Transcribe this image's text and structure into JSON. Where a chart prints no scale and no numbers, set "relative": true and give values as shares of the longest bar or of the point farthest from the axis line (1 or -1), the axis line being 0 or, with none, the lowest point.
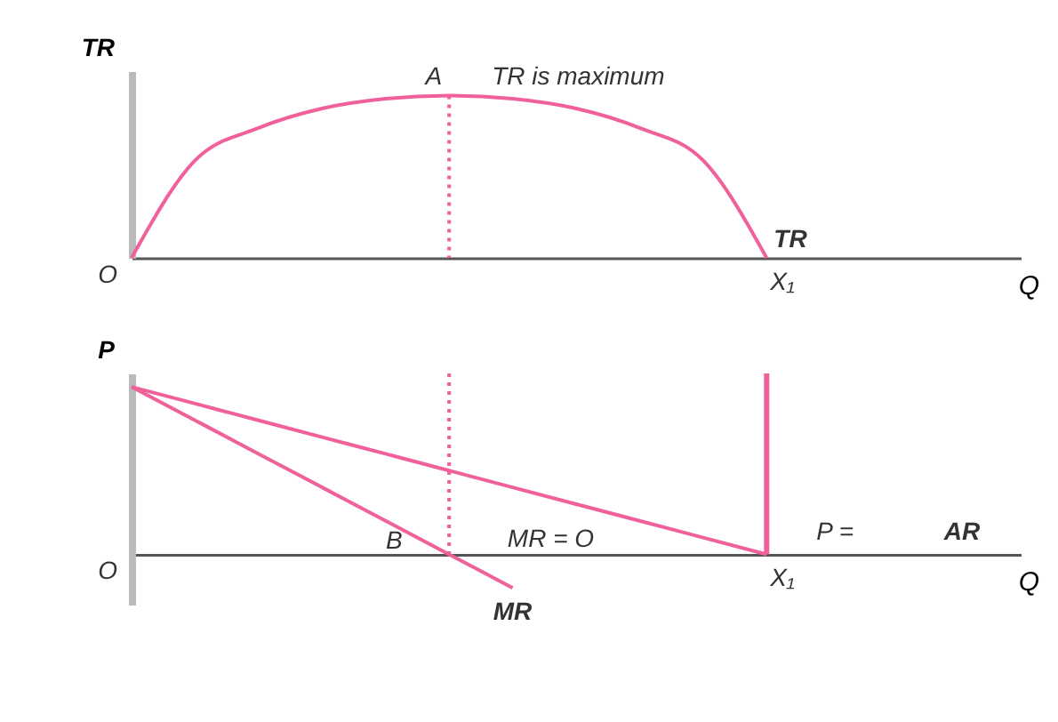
{
  "chart_data": [
    {
      "type": "line",
      "relative": true,
      "ylabel": "TR",
      "xlabel": "Q",
      "categories": [
        null,
        null,
        null,
        null,
        null,
        null,
        null,
        null,
        null,
        null,
        null,
        null,
        null,
        null,
        null
      ],
      "series": [
        {
          "name": "TR",
          "color": "#f0609a",
          "values": [
            0,
            0.6,
            0.8,
            0.92,
            0.98,
            1,
            0.98,
            0.92,
            0.8,
            0.6,
            0,
            null,
            null,
            null,
            null
          ]
        }
      ],
      "annotations": [
        "A",
        "TR is maximum",
        "O",
        "X₁"
      ]
    },
    {
      "type": "line",
      "relative": true,
      "ylabel": "P",
      "xlabel": "Q",
      "categories": [
        null,
        null,
        null,
        null,
        null,
        null,
        null,
        null,
        null,
        null,
        null,
        null,
        null,
        null,
        null
      ],
      "series": [
        {
          "name": "AR",
          "color": "#f0609a",
          "values": [
            1,
            0.9,
            0.8,
            0.7,
            0.6,
            0.5,
            0.4,
            0.3,
            0.2,
            0.1,
            0,
            null,
            null,
            null,
            null
          ]
        },
        {
          "name": "MR",
          "color": "#f0609a",
          "values": [
            1,
            0.8,
            0.6,
            0.4,
            0.2,
            0,
            -0.2,
            null,
            null,
            null,
            null,
            null,
            null,
            null,
            null
          ]
        }
      ],
      "annotations": [
        "O",
        "B",
        "MR = O",
        "P =",
        "X₁"
      ]
    }
  ]
}
